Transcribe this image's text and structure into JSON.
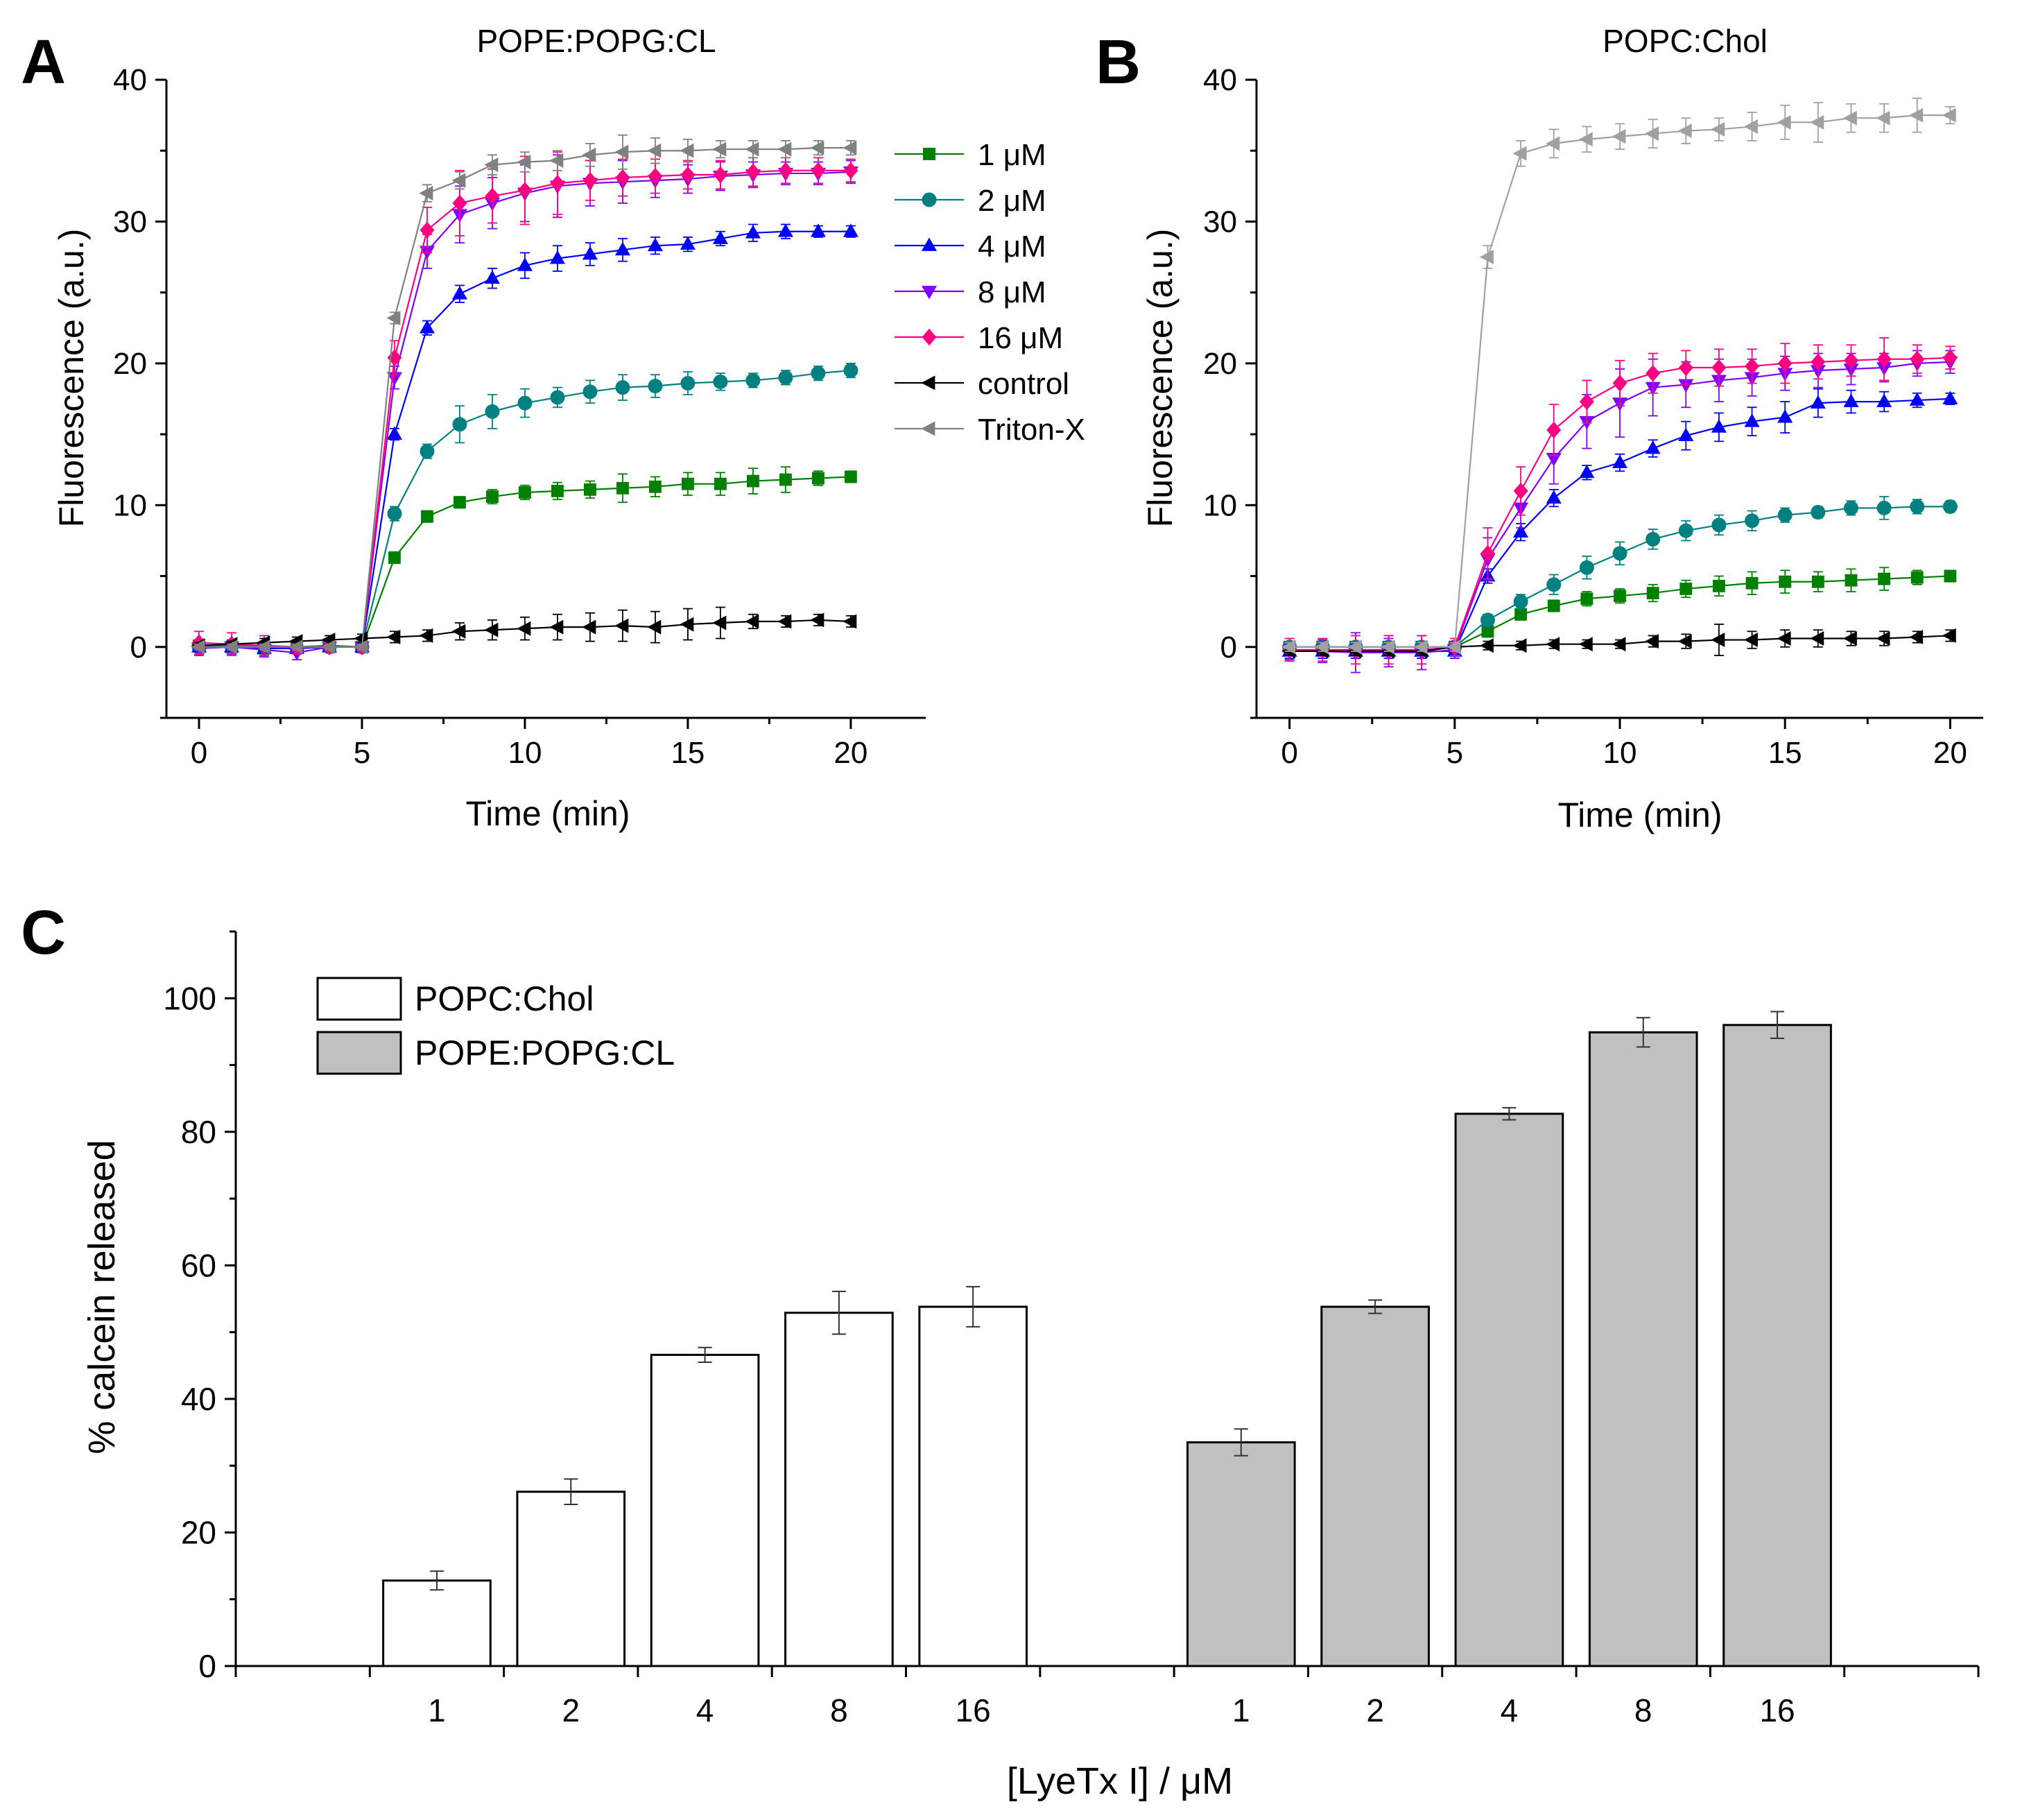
{
  "chart_data": [
    {
      "panel_label": "A",
      "type": "line",
      "title": "POPE:POPG:CL",
      "xlabel": "Time (min)",
      "ylabel": "Fluorescence (a.u.)",
      "xlim": [
        -1,
        22.3
      ],
      "ylim": [
        -5,
        40
      ],
      "xticks": [
        0,
        5,
        10,
        15,
        20
      ],
      "yticks": [
        0,
        10,
        20,
        30,
        40
      ],
      "legend_position": "top-right, outside plot",
      "x": [
        0,
        1,
        2,
        3,
        4,
        5,
        6,
        7,
        8,
        9,
        10,
        11,
        12,
        13,
        14,
        15,
        16,
        17,
        18,
        19,
        20
      ],
      "series": [
        {
          "name": "1 μM",
          "color": "#008000",
          "marker": "square",
          "values": [
            0.1,
            0,
            -0.1,
            0,
            0.1,
            0,
            6.3,
            9.2,
            10.2,
            10.6,
            10.9,
            11,
            11.1,
            11.2,
            11.3,
            11.5,
            11.5,
            11.7,
            11.8,
            11.9,
            12
          ],
          "errors": [
            0.3,
            0.3,
            0.3,
            0.3,
            0.3,
            0.3,
            0.4,
            0.4,
            0.4,
            0.5,
            0.5,
            0.6,
            0.6,
            1.0,
            0.7,
            0.8,
            0.8,
            0.9,
            0.9,
            0.5,
            0.4
          ]
        },
        {
          "name": "2 μM",
          "color": "#008080",
          "marker": "circle",
          "values": [
            0,
            0.1,
            0,
            -0.1,
            0,
            0,
            9.4,
            13.8,
            15.7,
            16.6,
            17.2,
            17.6,
            18.0,
            18.3,
            18.4,
            18.6,
            18.7,
            18.8,
            19.0,
            19.3,
            19.5
          ],
          "errors": [
            0.3,
            0.3,
            0.3,
            0.3,
            0.3,
            0.3,
            0.5,
            0.5,
            1.3,
            1.2,
            1.0,
            0.7,
            0.8,
            0.9,
            0.8,
            0.8,
            0.6,
            0.5,
            0.5,
            0.5,
            0.5
          ]
        },
        {
          "name": "4 μM",
          "color": "#0000ff",
          "marker": "triangle-up",
          "values": [
            0,
            0,
            -0.1,
            -0.1,
            0,
            0,
            15,
            22.5,
            24.9,
            26.0,
            26.9,
            27.4,
            27.7,
            28.0,
            28.3,
            28.4,
            28.8,
            29.2,
            29.3,
            29.3,
            29.3
          ],
          "errors": [
            0.3,
            0.3,
            0.3,
            0.3,
            0.3,
            0.3,
            0.4,
            0.5,
            0.6,
            0.7,
            0.9,
            0.9,
            0.8,
            0.8,
            0.6,
            0.5,
            0.5,
            0.6,
            0.5,
            0.4,
            0.4
          ]
        },
        {
          "name": "8 μM",
          "color": "#8000ff",
          "marker": "triangle-down",
          "values": [
            -0.1,
            0,
            -0.2,
            -0.4,
            0,
            0,
            19,
            27.9,
            30.5,
            31.3,
            32.0,
            32.5,
            32.7,
            32.8,
            32.9,
            33.0,
            33.2,
            33.3,
            33.4,
            33.4,
            33.5
          ],
          "errors": [
            0.5,
            0.5,
            0.5,
            0.5,
            0.3,
            0.3,
            0.8,
            1.2,
            2.0,
            1.8,
            2.0,
            2.2,
            1.6,
            1.5,
            1.2,
            1.0,
            1.0,
            0.9,
            0.8,
            0.8,
            0.8
          ]
        },
        {
          "name": "16 μM",
          "color": "#ff0080",
          "marker": "diamond",
          "values": [
            0.3,
            0.2,
            0.1,
            0,
            0,
            0,
            20.4,
            29.4,
            31.3,
            31.8,
            32.2,
            32.7,
            32.9,
            33.1,
            33.2,
            33.3,
            33.3,
            33.5,
            33.6,
            33.6,
            33.6
          ],
          "errors": [
            0.8,
            0.8,
            0.7,
            0.5,
            0.3,
            0.3,
            1.2,
            1.6,
            2.3,
            1.9,
            2.4,
            2.2,
            1.4,
            1.3,
            1.2,
            1.0,
            1.0,
            1.0,
            0.9,
            0.9,
            0.8
          ]
        },
        {
          "name": "control",
          "color": "#000000",
          "marker": "triangle-left",
          "values": [
            0.1,
            0.2,
            0.3,
            0.4,
            0.5,
            0.6,
            0.7,
            0.8,
            1.1,
            1.2,
            1.3,
            1.4,
            1.4,
            1.5,
            1.4,
            1.6,
            1.7,
            1.8,
            1.8,
            1.9,
            1.8
          ],
          "errors": [
            0.2,
            0.2,
            0.3,
            0.3,
            0.3,
            0.3,
            0.4,
            0.4,
            0.6,
            0.7,
            0.8,
            0.9,
            1.0,
            1.1,
            1.1,
            1.1,
            1.1,
            0.5,
            0.4,
            0.4,
            0.4
          ]
        },
        {
          "name": "Triton-X",
          "color": "#808080",
          "marker": "triangle-left",
          "values": [
            0,
            0,
            0,
            0,
            0,
            0,
            23.2,
            32.0,
            32.9,
            34.0,
            34.2,
            34.3,
            34.7,
            34.9,
            35.0,
            35.0,
            35.1,
            35.1,
            35.1,
            35.2,
            35.2
          ],
          "errors": [
            0.2,
            0.2,
            0.2,
            0.2,
            0.2,
            0.2,
            0.4,
            0.6,
            0.6,
            0.7,
            0.7,
            0.7,
            0.8,
            1.2,
            0.9,
            0.8,
            0.6,
            0.6,
            0.6,
            0.5,
            0.5
          ]
        }
      ]
    },
    {
      "panel_label": "B",
      "type": "line",
      "title": "POPC:Chol",
      "xlabel": "Time (min)",
      "ylabel": "Fluorescence (a.u.)",
      "xlim": [
        -1,
        21
      ],
      "ylim": [
        -5,
        40
      ],
      "xticks": [
        0,
        5,
        10,
        15,
        20
      ],
      "yticks": [
        0,
        10,
        20,
        30,
        40
      ],
      "x": [
        0,
        1,
        2,
        3,
        4,
        5,
        6,
        7,
        8,
        9,
        10,
        11,
        12,
        13,
        14,
        15,
        16,
        17,
        18,
        19,
        20
      ],
      "series": [
        {
          "name": "1 μM",
          "color": "#008000",
          "marker": "square",
          "values": [
            0,
            0,
            0,
            0,
            0,
            0,
            1.1,
            2.3,
            2.9,
            3.4,
            3.6,
            3.8,
            4.1,
            4.3,
            4.5,
            4.6,
            4.6,
            4.7,
            4.8,
            4.9,
            5.0
          ],
          "errors": [
            0.3,
            0.3,
            0.3,
            0.3,
            0.3,
            0.3,
            0.4,
            0.4,
            0.4,
            0.5,
            0.5,
            0.6,
            0.6,
            0.7,
            0.8,
            0.8,
            0.7,
            0.8,
            0.8,
            0.5,
            0.4
          ]
        },
        {
          "name": "2 μM",
          "color": "#008080",
          "marker": "circle",
          "values": [
            0,
            0,
            0,
            0,
            0,
            0,
            1.9,
            3.2,
            4.4,
            5.6,
            6.6,
            7.6,
            8.2,
            8.6,
            8.9,
            9.3,
            9.5,
            9.8,
            9.8,
            9.9,
            9.9
          ],
          "errors": [
            0.3,
            0.3,
            0.3,
            0.3,
            0.3,
            0.3,
            0.4,
            0.5,
            0.7,
            0.8,
            0.8,
            0.7,
            0.7,
            0.7,
            0.7,
            0.5,
            0.4,
            0.5,
            0.8,
            0.5,
            0.4
          ]
        },
        {
          "name": "4 μM",
          "color": "#0000ff",
          "marker": "triangle-up",
          "values": [
            -0.3,
            -0.3,
            -0.3,
            -0.3,
            -0.3,
            -0.3,
            5.0,
            8.1,
            10.5,
            12.3,
            13.0,
            14.0,
            14.9,
            15.5,
            15.9,
            16.2,
            17.2,
            17.3,
            17.3,
            17.4,
            17.5
          ],
          "errors": [
            0.5,
            0.5,
            0.5,
            0.5,
            0.5,
            0.5,
            0.5,
            0.6,
            0.6,
            0.5,
            0.6,
            0.6,
            1.0,
            1.0,
            1.0,
            1.1,
            1.0,
            0.8,
            0.7,
            0.5,
            0.4
          ]
        },
        {
          "name": "8 μM",
          "color": "#8000ff",
          "marker": "triangle-down",
          "values": [
            -0.3,
            -0.3,
            -0.4,
            -0.4,
            -0.4,
            -0.2,
            6.2,
            9.8,
            13.3,
            15.9,
            17.2,
            18.3,
            18.5,
            18.8,
            19.0,
            19.3,
            19.5,
            19.6,
            19.7,
            20.0,
            20.1
          ],
          "errors": [
            0.6,
            0.8,
            1.4,
            1.0,
            1.2,
            0.6,
            1.5,
            1.4,
            1.8,
            1.9,
            2.4,
            2.0,
            1.6,
            1.5,
            1.3,
            1.2,
            1.2,
            1.1,
            1.0,
            0.9,
            0.8
          ]
        },
        {
          "name": "16 μM",
          "color": "#ff0080",
          "marker": "diamond",
          "values": [
            -0.2,
            -0.2,
            -0.2,
            -0.2,
            -0.2,
            0,
            6.6,
            11.0,
            15.3,
            17.3,
            18.6,
            19.3,
            19.7,
            19.7,
            19.8,
            20.0,
            20.1,
            20.2,
            20.3,
            20.3,
            20.4
          ],
          "errors": [
            0.8,
            0.8,
            1.0,
            1.0,
            1.0,
            0.6,
            1.8,
            1.7,
            1.8,
            1.5,
            1.6,
            1.4,
            1.2,
            1.3,
            1.2,
            1.4,
            1.2,
            1.1,
            1.5,
            1.0,
            0.8
          ]
        },
        {
          "name": "control",
          "color": "#000000",
          "marker": "triangle-left",
          "values": [
            -0.3,
            -0.3,
            -0.3,
            -0.3,
            -0.3,
            0,
            0.1,
            0.1,
            0.2,
            0.2,
            0.2,
            0.4,
            0.4,
            0.5,
            0.5,
            0.6,
            0.6,
            0.6,
            0.6,
            0.7,
            0.8
          ],
          "errors": [
            0.3,
            0.3,
            0.3,
            0.3,
            0.3,
            0.3,
            0.3,
            0.3,
            0.3,
            0.3,
            0.3,
            0.4,
            0.5,
            1.1,
            0.6,
            0.6,
            0.6,
            0.5,
            0.5,
            0.4,
            0.4
          ]
        },
        {
          "name": "Triton-X",
          "color": "#a0a0a0",
          "marker": "triangle-left",
          "values": [
            0,
            0,
            0,
            0,
            0,
            0,
            27.5,
            34.8,
            35.5,
            35.8,
            36.0,
            36.2,
            36.4,
            36.5,
            36.7,
            37.0,
            37.0,
            37.3,
            37.3,
            37.5,
            37.5
          ],
          "errors": [
            0.3,
            0.3,
            0.3,
            0.3,
            0.3,
            0.3,
            0.8,
            0.9,
            1.0,
            0.9,
            0.9,
            1.0,
            0.9,
            0.8,
            1.0,
            1.2,
            1.4,
            1.0,
            1.0,
            1.2,
            0.6
          ]
        }
      ]
    },
    {
      "panel_label": "C",
      "type": "bar",
      "xlabel": "[LyeTx I] / μM",
      "ylabel": "% calcein released",
      "ylim": [
        0,
        110
      ],
      "yticks": [
        0,
        20,
        40,
        60,
        80,
        100
      ],
      "legend_position": "top-left, inside plot",
      "groups": [
        {
          "name": "POPC:Chol",
          "color": "#ffffff",
          "categories": [
            "1",
            "2",
            "4",
            "8",
            "16"
          ],
          "values": [
            12.8,
            26.1,
            46.6,
            52.9,
            53.8
          ],
          "errors": [
            1.4,
            1.9,
            1.1,
            3.2,
            3.0
          ]
        },
        {
          "name": "POPE:POPG:CL",
          "color": "#c0c0c0",
          "categories": [
            "1",
            "2",
            "4",
            "8",
            "16"
          ],
          "values": [
            33.5,
            53.8,
            82.7,
            94.9,
            96.0
          ],
          "errors": [
            2.0,
            1.0,
            0.9,
            2.2,
            2.0
          ]
        }
      ]
    }
  ]
}
